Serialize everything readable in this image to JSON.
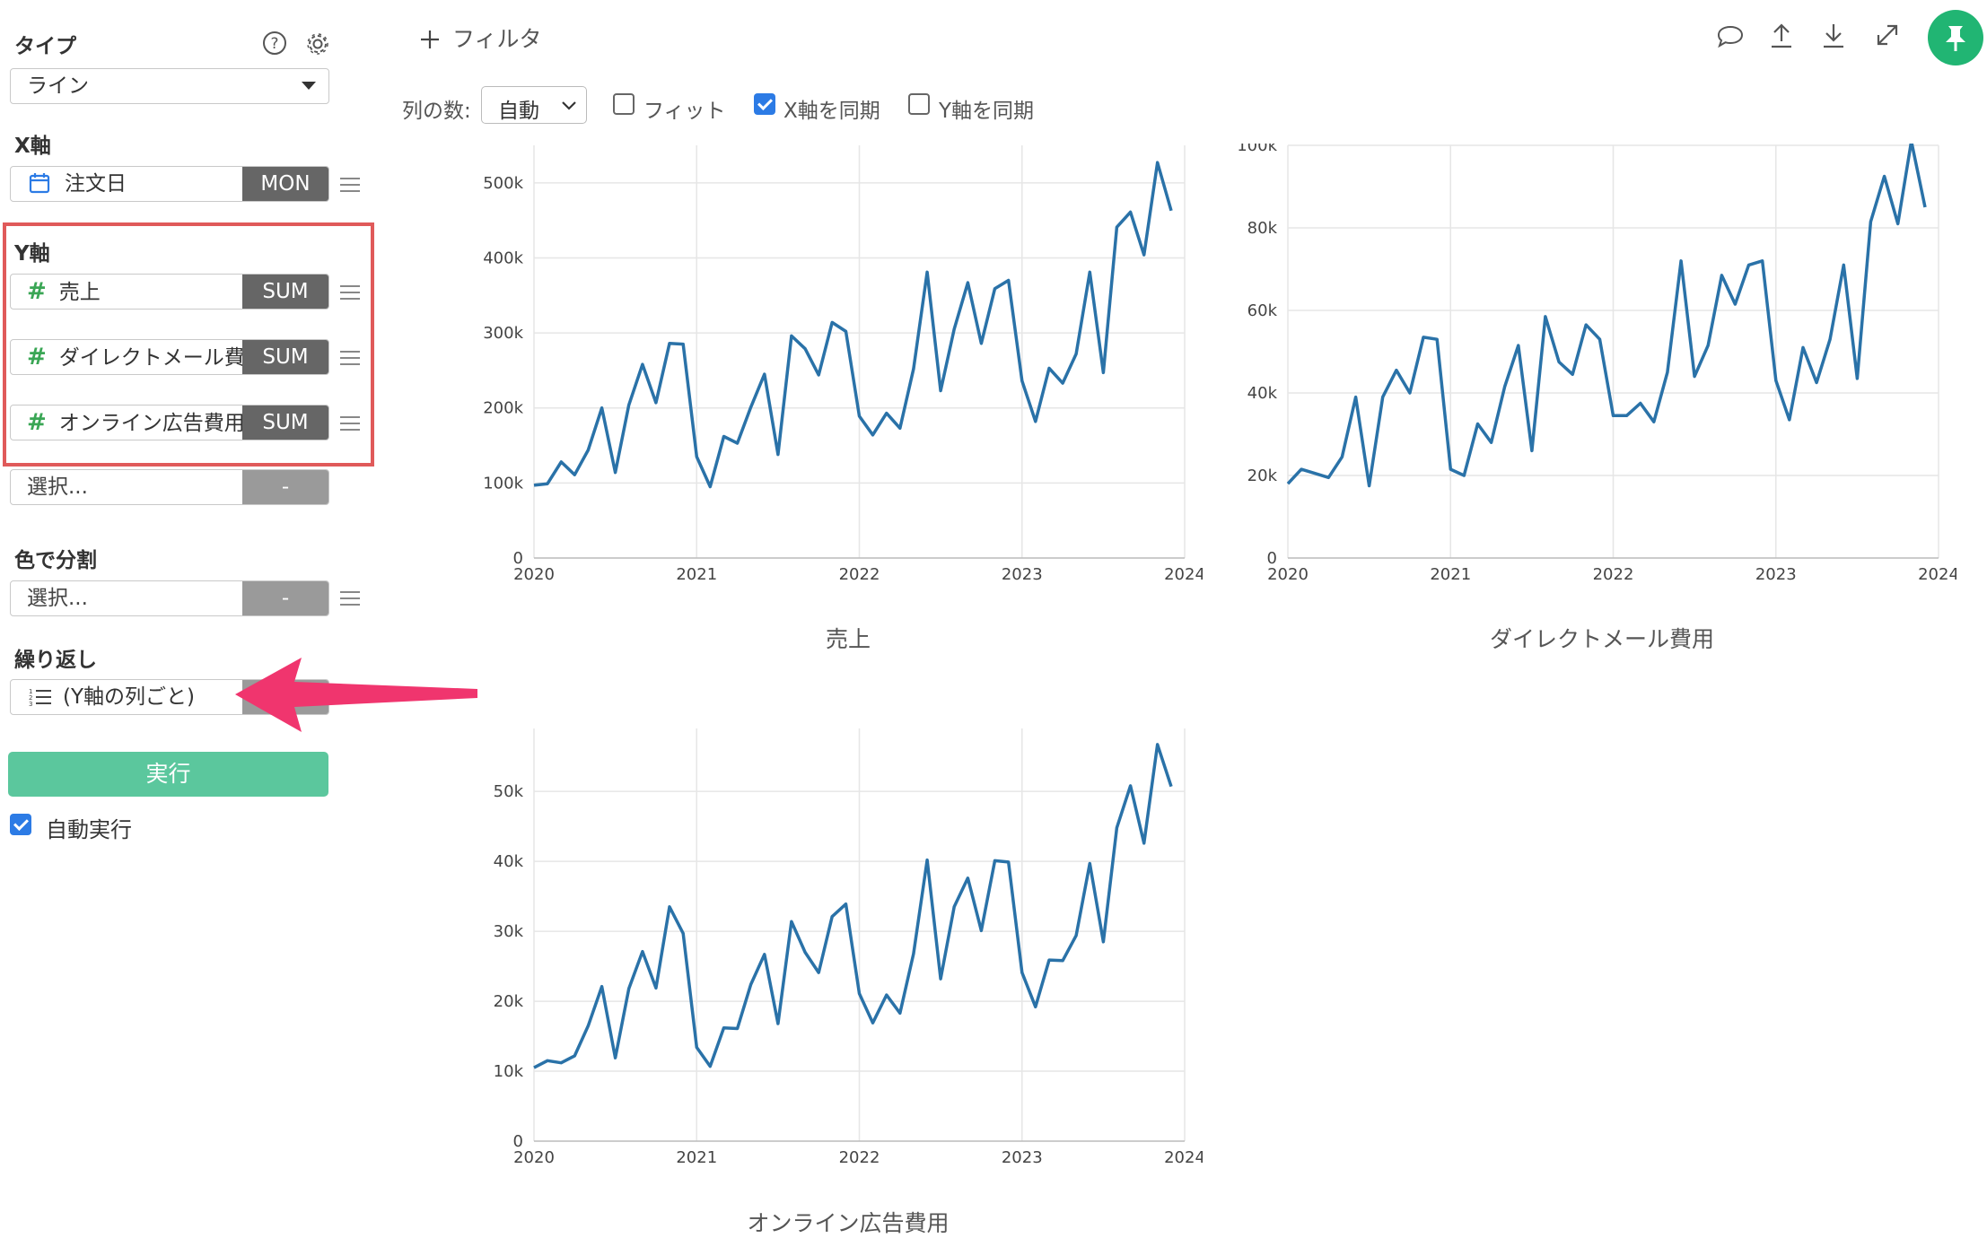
{
  "sidebar": {
    "type_label": "タイプ",
    "type_value": "ライン",
    "x_axis_label": "X軸",
    "x_field": "注文日",
    "x_agg": "MON",
    "y_axis_label": "Y軸",
    "y_fields": [
      {
        "name": "売上",
        "agg": "SUM"
      },
      {
        "name": "ダイレクトメール費用",
        "agg": "SUM"
      },
      {
        "name": "オンライン広告費用",
        "agg": "SUM"
      }
    ],
    "y_select_placeholder": "選択...",
    "y_select_agg": "-",
    "color_label": "色で分割",
    "color_placeholder": "選択...",
    "color_agg": "-",
    "repeat_label": "繰り返し",
    "repeat_value": "(Y軸の列ごと)",
    "run_label": "実行",
    "auto_run_label": "自動実行",
    "accent_color": "#5bc79d",
    "highlight_color": "#e05a5a",
    "arrow_color": "#f0356e"
  },
  "toolbar": {
    "filter_label": "フィルタ",
    "columns_label": "列の数:",
    "columns_value": "自動",
    "fit_label": "フィット",
    "sync_x_label": "X軸を同期",
    "sync_y_label": "Y軸を同期",
    "fit_checked": false,
    "sync_x_checked": true,
    "sync_y_checked": false,
    "icons": [
      "comment-icon",
      "upload-icon",
      "download-icon",
      "expand-icon",
      "pin-icon"
    ],
    "pin_color": "#21b573"
  },
  "chart_data": [
    {
      "type": "line",
      "title": "売上",
      "color": "#2a72a8",
      "x_ticks": [
        "2020",
        "2021",
        "2022",
        "2023",
        "2024"
      ],
      "y_ticks": [
        "0",
        "100k",
        "200k",
        "300k",
        "400k",
        "500k"
      ],
      "ylim": [
        0,
        550000
      ],
      "xlim": [
        2020,
        2024
      ],
      "x": [
        2020.0,
        2020.083,
        2020.167,
        2020.25,
        2020.333,
        2020.417,
        2020.5,
        2020.583,
        2020.667,
        2020.75,
        2020.833,
        2020.917,
        2021.0,
        2021.083,
        2021.167,
        2021.25,
        2021.333,
        2021.417,
        2021.5,
        2021.583,
        2021.667,
        2021.75,
        2021.833,
        2021.917,
        2022.0,
        2022.083,
        2022.167,
        2022.25,
        2022.333,
        2022.417,
        2022.5,
        2022.583,
        2022.667,
        2022.75,
        2022.833,
        2022.917,
        2023.0,
        2023.083,
        2023.167,
        2023.25,
        2023.333,
        2023.417,
        2023.5,
        2023.583,
        2023.667,
        2023.75,
        2023.833,
        2023.917
      ],
      "y": [
        97000,
        99000,
        128000,
        111000,
        144000,
        200000,
        114000,
        204000,
        258000,
        207000,
        286000,
        285000,
        135000,
        95000,
        162000,
        153000,
        201000,
        245000,
        138000,
        296000,
        279000,
        244000,
        314000,
        302000,
        189000,
        164000,
        193000,
        173000,
        252000,
        381000,
        223000,
        305000,
        367000,
        286000,
        359000,
        370000,
        236000,
        182000,
        253000,
        233000,
        272000,
        381000,
        247000,
        441000,
        461000,
        404000,
        527000,
        463000
      ]
    },
    {
      "type": "line",
      "title": "ダイレクトメール費用",
      "color": "#2a72a8",
      "x_ticks": [
        "2020",
        "2021",
        "2022",
        "2023",
        "2024"
      ],
      "y_ticks": [
        "0",
        "20k",
        "40k",
        "60k",
        "80k",
        "100k"
      ],
      "ylim": [
        0,
        100000
      ],
      "xlim": [
        2020,
        2024
      ],
      "x": [
        2020.0,
        2020.083,
        2020.167,
        2020.25,
        2020.333,
        2020.417,
        2020.5,
        2020.583,
        2020.667,
        2020.75,
        2020.833,
        2020.917,
        2021.0,
        2021.083,
        2021.167,
        2021.25,
        2021.333,
        2021.417,
        2021.5,
        2021.583,
        2021.667,
        2021.75,
        2021.833,
        2021.917,
        2022.0,
        2022.083,
        2022.167,
        2022.25,
        2022.333,
        2022.417,
        2022.5,
        2022.583,
        2022.667,
        2022.75,
        2022.833,
        2022.917,
        2023.0,
        2023.083,
        2023.167,
        2023.25,
        2023.333,
        2023.417,
        2023.5,
        2023.583,
        2023.667,
        2023.75,
        2023.833,
        2023.917
      ],
      "y": [
        18000,
        21500,
        20500,
        19500,
        24500,
        39000,
        17500,
        39000,
        45500,
        40000,
        53500,
        53000,
        21500,
        20000,
        32500,
        28000,
        41500,
        51500,
        26000,
        58500,
        47500,
        44500,
        56500,
        53000,
        34500,
        34500,
        37500,
        33000,
        45000,
        72000,
        44000,
        51500,
        68500,
        61500,
        71000,
        72000,
        43000,
        33500,
        51000,
        42500,
        53000,
        71000,
        43500,
        81500,
        92500,
        81000,
        101000,
        85000
      ]
    },
    {
      "type": "line",
      "title": "オンライン広告費用",
      "color": "#2a72a8",
      "x_ticks": [
        "2020",
        "2021",
        "2022",
        "2023",
        "2024"
      ],
      "y_ticks": [
        "0",
        "10k",
        "20k",
        "30k",
        "40k",
        "50k"
      ],
      "ylim": [
        0,
        59000
      ],
      "xlim": [
        2020,
        2024
      ],
      "x": [
        2020.0,
        2020.083,
        2020.167,
        2020.25,
        2020.333,
        2020.417,
        2020.5,
        2020.583,
        2020.667,
        2020.75,
        2020.833,
        2020.917,
        2021.0,
        2021.083,
        2021.167,
        2021.25,
        2021.333,
        2021.417,
        2021.5,
        2021.583,
        2021.667,
        2021.75,
        2021.833,
        2021.917,
        2022.0,
        2022.083,
        2022.167,
        2022.25,
        2022.333,
        2022.417,
        2022.5,
        2022.583,
        2022.667,
        2022.75,
        2022.833,
        2022.917,
        2023.0,
        2023.083,
        2023.167,
        2023.25,
        2023.333,
        2023.417,
        2023.5,
        2023.583,
        2023.667,
        2023.75,
        2023.833,
        2023.917
      ],
      "y": [
        10500,
        11500,
        11200,
        12200,
        16500,
        22100,
        11900,
        21800,
        27100,
        21900,
        33500,
        29700,
        13400,
        10700,
        16200,
        16100,
        22400,
        26700,
        16800,
        31400,
        27000,
        24100,
        32100,
        33900,
        21100,
        16900,
        20900,
        18300,
        26800,
        40200,
        23200,
        33500,
        37600,
        30100,
        40100,
        39900,
        24100,
        19200,
        25900,
        25800,
        29400,
        39700,
        28500,
        44800,
        50800,
        42600,
        56700,
        50700
      ]
    }
  ]
}
